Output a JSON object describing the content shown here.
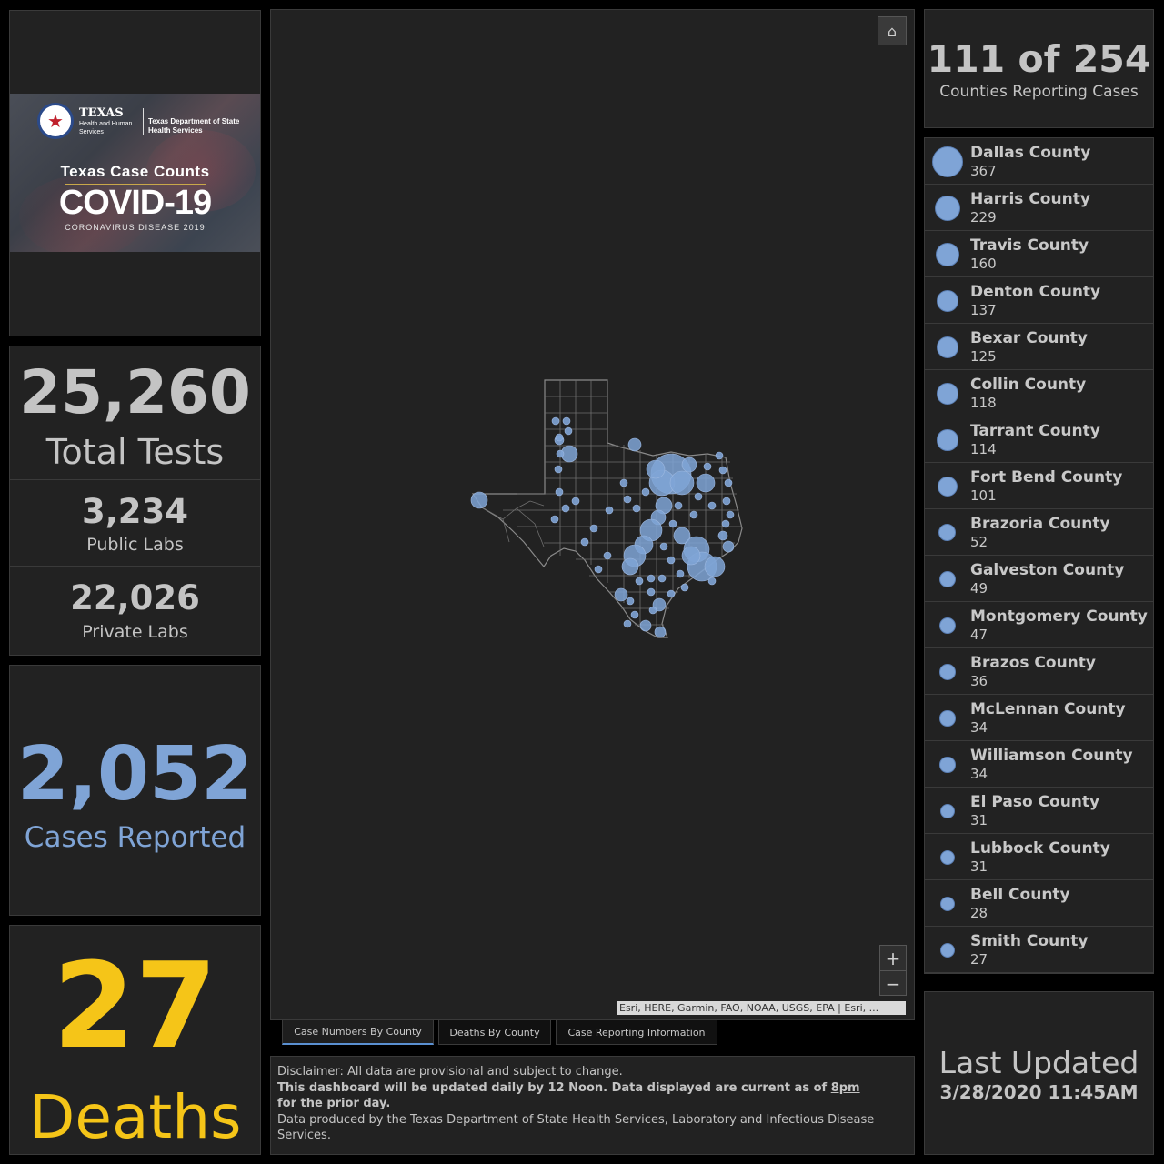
{
  "banner": {
    "org_name": "TEXAS",
    "org_sub": "Health and Human Services",
    "dept": "Texas Department of State Health Services",
    "title": "Texas Case Counts",
    "covid": "COVID-19",
    "subtitle": "CORONAVIRUS DISEASE 2019"
  },
  "tests": {
    "total_value": "25,260",
    "total_label": "Total Tests",
    "public_value": "3,234",
    "public_label": "Public Labs",
    "private_value": "22,026",
    "private_label": "Private Labs"
  },
  "cases": {
    "value": "2,052",
    "label": "Cases Reported"
  },
  "deaths": {
    "value": "27",
    "label": "Deaths"
  },
  "counties_reporting": {
    "value": "111 of 254",
    "label": "Counties Reporting Cases"
  },
  "county_list": [
    {
      "name": "Dallas County",
      "count": "367"
    },
    {
      "name": "Harris County",
      "count": "229"
    },
    {
      "name": "Travis County",
      "count": "160"
    },
    {
      "name": "Denton County",
      "count": "137"
    },
    {
      "name": "Bexar County",
      "count": "125"
    },
    {
      "name": "Collin County",
      "count": "118"
    },
    {
      "name": "Tarrant County",
      "count": "114"
    },
    {
      "name": "Fort Bend County",
      "count": "101"
    },
    {
      "name": "Brazoria County",
      "count": "52"
    },
    {
      "name": "Galveston County",
      "count": "49"
    },
    {
      "name": "Montgomery County",
      "count": "47"
    },
    {
      "name": "Brazos County",
      "count": "36"
    },
    {
      "name": "McLennan County",
      "count": "34"
    },
    {
      "name": "Williamson County",
      "count": "34"
    },
    {
      "name": "El Paso County",
      "count": "31"
    },
    {
      "name": "Lubbock County",
      "count": "31"
    },
    {
      "name": "Bell County",
      "count": "28"
    },
    {
      "name": "Smith County",
      "count": "27"
    }
  ],
  "map": {
    "home_icon": "home-icon",
    "zoom_in": "+",
    "zoom_out": "−",
    "attribution": "Esri, HERE, Garmin, FAO, NOAA, USGS, EPA | Esri, ...",
    "bubble_color": "#7fa4d6",
    "outline_color": "#8a8a8a"
  },
  "tabs": [
    {
      "label": "Case Numbers By County",
      "active": true
    },
    {
      "label": "Deaths By County",
      "active": false
    },
    {
      "label": "Case Reporting Information",
      "active": false
    }
  ],
  "disclaimer": {
    "line1": "Disclaimer: All data are provisional and subject to change.",
    "line2a": "This dashboard will be updated daily by 12 Noon. Data displayed are current as of ",
    "line2b": "8pm",
    "line3": "for the prior day.",
    "line4": "Data produced by the Texas Department of State Health Services, Laboratory and Infectious Disease Services."
  },
  "last_updated": {
    "label": "Last Updated",
    "date": "3/28/2020 11:45AM"
  }
}
